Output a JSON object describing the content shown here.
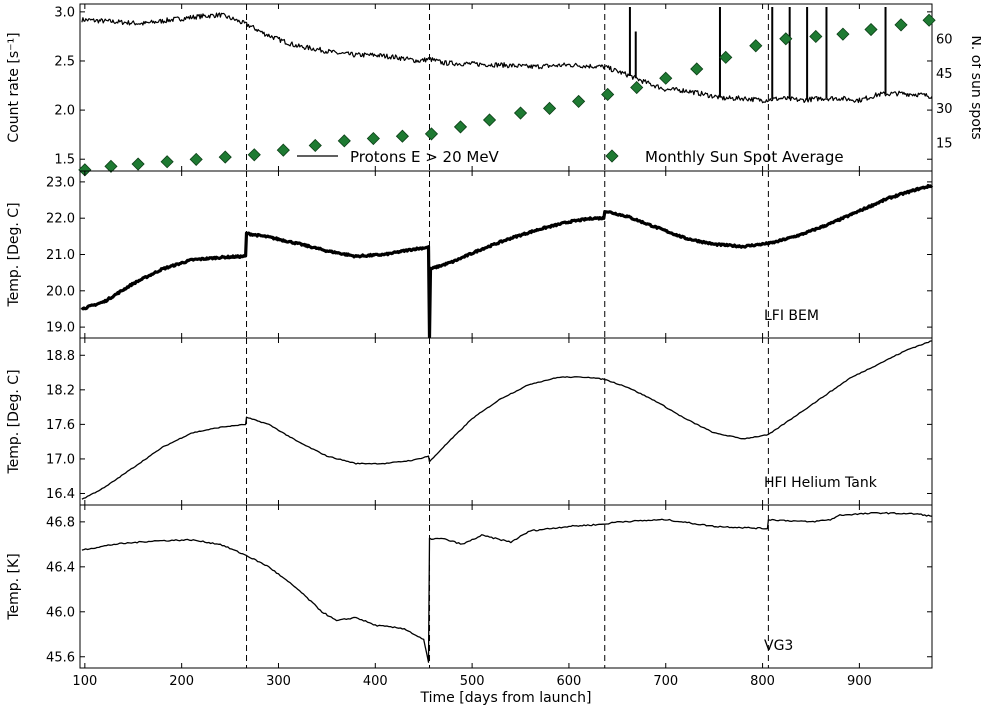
{
  "chart_data": {
    "type": "line",
    "xlabel": "Time [days from launch]",
    "xlim": [
      95,
      975
    ],
    "xticks": [
      100,
      200,
      300,
      400,
      500,
      600,
      700,
      800,
      900
    ],
    "event_days": [
      267,
      456,
      637,
      806
    ],
    "panels": [
      {
        "ylabel": "Count rate [s⁻¹]",
        "ylim": [
          1.38,
          3.08
        ],
        "yticks": [
          "1.5",
          "2.0",
          "2.5",
          "3.0"
        ],
        "series_label": "Protons E > 20 MeV",
        "series": [
          [
            97,
            2.92
          ],
          [
            130,
            2.9
          ],
          [
            160,
            2.88
          ],
          [
            190,
            2.92
          ],
          [
            215,
            2.95
          ],
          [
            240,
            2.97
          ],
          [
            255,
            2.92
          ],
          [
            270,
            2.86
          ],
          [
            285,
            2.78
          ],
          [
            300,
            2.72
          ],
          [
            320,
            2.65
          ],
          [
            340,
            2.62
          ],
          [
            360,
            2.58
          ],
          [
            380,
            2.56
          ],
          [
            400,
            2.56
          ],
          [
            420,
            2.54
          ],
          [
            445,
            2.5
          ],
          [
            456,
            2.52
          ],
          [
            470,
            2.48
          ],
          [
            500,
            2.47
          ],
          [
            530,
            2.46
          ],
          [
            560,
            2.44
          ],
          [
            600,
            2.46
          ],
          [
            637,
            2.44
          ],
          [
            660,
            2.36
          ],
          [
            680,
            2.28
          ],
          [
            700,
            2.21
          ],
          [
            720,
            2.2
          ],
          [
            740,
            2.16
          ],
          [
            760,
            2.12
          ],
          [
            780,
            2.12
          ],
          [
            800,
            2.1
          ],
          [
            820,
            2.12
          ],
          [
            840,
            2.1
          ],
          [
            860,
            2.12
          ],
          [
            880,
            2.12
          ],
          [
            900,
            2.1
          ],
          [
            920,
            2.16
          ],
          [
            940,
            2.17
          ],
          [
            960,
            2.16
          ],
          [
            975,
            2.14
          ]
        ],
        "spikes": [
          [
            663,
            3.05
          ],
          [
            669,
            2.8
          ],
          [
            756,
            3.05
          ],
          [
            810,
            3.05
          ],
          [
            828,
            3.05
          ],
          [
            846,
            3.05
          ],
          [
            866,
            3.05
          ],
          [
            927,
            3.05
          ]
        ],
        "sunspot_label": "Monthly Sun Spot Average",
        "sunspot_ylim": [
          3,
          75
        ],
        "sunspot_yticks": [
          "15",
          "30",
          "45",
          "60"
        ],
        "sunspots": [
          [
            100,
            3.5
          ],
          [
            127,
            5
          ],
          [
            155,
            6
          ],
          [
            185,
            7
          ],
          [
            215,
            8
          ],
          [
            245,
            9
          ],
          [
            275,
            10
          ],
          [
            305,
            12
          ],
          [
            338,
            14
          ],
          [
            368,
            16
          ],
          [
            398,
            17
          ],
          [
            428,
            18
          ],
          [
            458,
            19
          ],
          [
            488,
            22
          ],
          [
            518,
            25
          ],
          [
            550,
            28
          ],
          [
            580,
            30
          ],
          [
            610,
            33
          ],
          [
            640,
            36
          ],
          [
            670,
            39
          ],
          [
            700,
            43
          ],
          [
            732,
            47
          ],
          [
            762,
            52
          ],
          [
            793,
            57
          ],
          [
            824,
            60
          ],
          [
            855,
            61
          ],
          [
            883,
            62
          ],
          [
            912,
            64
          ],
          [
            943,
            66
          ],
          [
            972,
            68
          ]
        ]
      },
      {
        "ylabel": "Temp. [Deg. C]",
        "ylim": [
          18.7,
          23.3
        ],
        "yticks": [
          "19.0",
          "20.0",
          "21.0",
          "22.0",
          "23.0"
        ],
        "series_label": "LFI BEM",
        "series": [
          [
            97,
            19.5
          ],
          [
            120,
            19.7
          ],
          [
            150,
            20.2
          ],
          [
            180,
            20.6
          ],
          [
            210,
            20.85
          ],
          [
            240,
            20.92
          ],
          [
            266,
            20.95
          ],
          [
            267,
            21.58
          ],
          [
            290,
            21.48
          ],
          [
            320,
            21.3
          ],
          [
            350,
            21.1
          ],
          [
            380,
            20.95
          ],
          [
            410,
            21.0
          ],
          [
            440,
            21.15
          ],
          [
            455,
            21.2
          ],
          [
            456,
            18.75
          ],
          [
            457,
            20.6
          ],
          [
            480,
            20.8
          ],
          [
            510,
            21.15
          ],
          [
            540,
            21.45
          ],
          [
            570,
            21.7
          ],
          [
            600,
            21.9
          ],
          [
            625,
            22.0
          ],
          [
            636,
            22.0
          ],
          [
            637,
            22.2
          ],
          [
            660,
            22.05
          ],
          [
            690,
            21.75
          ],
          [
            720,
            21.45
          ],
          [
            750,
            21.28
          ],
          [
            780,
            21.22
          ],
          [
            810,
            21.32
          ],
          [
            840,
            21.55
          ],
          [
            870,
            21.85
          ],
          [
            900,
            22.2
          ],
          [
            930,
            22.55
          ],
          [
            960,
            22.8
          ],
          [
            975,
            22.9
          ]
        ]
      },
      {
        "ylabel": "Temp. [Deg. C]",
        "ylim": [
          16.2,
          19.1
        ],
        "yticks": [
          "16.4",
          "17.0",
          "17.6",
          "18.2",
          "18.8"
        ],
        "series_label": "HFI Helium Tank",
        "series": [
          [
            97,
            16.3
          ],
          [
            120,
            16.5
          ],
          [
            150,
            16.85
          ],
          [
            180,
            17.2
          ],
          [
            210,
            17.45
          ],
          [
            240,
            17.55
          ],
          [
            266,
            17.6
          ],
          [
            267,
            17.72
          ],
          [
            290,
            17.6
          ],
          [
            320,
            17.3
          ],
          [
            350,
            17.05
          ],
          [
            380,
            16.92
          ],
          [
            410,
            16.92
          ],
          [
            440,
            16.98
          ],
          [
            455,
            17.05
          ],
          [
            456,
            16.95
          ],
          [
            470,
            17.2
          ],
          [
            500,
            17.7
          ],
          [
            530,
            18.05
          ],
          [
            560,
            18.3
          ],
          [
            590,
            18.42
          ],
          [
            620,
            18.42
          ],
          [
            637,
            18.38
          ],
          [
            660,
            18.25
          ],
          [
            690,
            18.0
          ],
          [
            720,
            17.7
          ],
          [
            750,
            17.45
          ],
          [
            780,
            17.35
          ],
          [
            806,
            17.42
          ],
          [
            830,
            17.7
          ],
          [
            860,
            18.05
          ],
          [
            890,
            18.4
          ],
          [
            920,
            18.65
          ],
          [
            950,
            18.9
          ],
          [
            975,
            19.05
          ]
        ]
      },
      {
        "ylabel": "Temp. [K]",
        "ylim": [
          45.5,
          46.95
        ],
        "yticks": [
          "45.6",
          "46.0",
          "46.4",
          "46.8"
        ],
        "series_label": "VG3",
        "series": [
          [
            97,
            46.55
          ],
          [
            130,
            46.6
          ],
          [
            170,
            46.63
          ],
          [
            210,
            46.64
          ],
          [
            240,
            46.6
          ],
          [
            267,
            46.5
          ],
          [
            290,
            46.4
          ],
          [
            320,
            46.2
          ],
          [
            345,
            46.0
          ],
          [
            360,
            45.92
          ],
          [
            380,
            45.95
          ],
          [
            400,
            45.88
          ],
          [
            430,
            45.85
          ],
          [
            450,
            45.75
          ],
          [
            455,
            45.55
          ],
          [
            456,
            46.65
          ],
          [
            470,
            46.65
          ],
          [
            490,
            46.6
          ],
          [
            510,
            46.68
          ],
          [
            540,
            46.62
          ],
          [
            560,
            46.72
          ],
          [
            600,
            46.76
          ],
          [
            637,
            46.78
          ],
          [
            650,
            46.8
          ],
          [
            700,
            46.82
          ],
          [
            750,
            46.76
          ],
          [
            805,
            46.74
          ],
          [
            806,
            46.82
          ],
          [
            850,
            46.8
          ],
          [
            870,
            46.82
          ],
          [
            880,
            46.86
          ],
          [
            920,
            46.88
          ],
          [
            960,
            46.87
          ],
          [
            975,
            46.85
          ]
        ]
      }
    ]
  }
}
